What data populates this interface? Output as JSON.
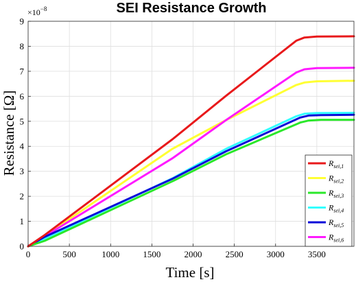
{
  "chart_data": {
    "type": "line",
    "title": "SEI Resistance Growth",
    "xlabel": "Time [s]",
    "ylabel": "Resistance [Ω]",
    "y_exponent_label": "×10",
    "y_exponent": "−8",
    "xlim": [
      0,
      3950
    ],
    "ylim": [
      0,
      9
    ],
    "y_scale_factor": 1e-08,
    "xticks": [
      0,
      500,
      1000,
      1500,
      2000,
      2500,
      3000,
      3500
    ],
    "yticks": [
      0,
      1,
      2,
      3,
      4,
      5,
      6,
      7,
      8,
      9
    ],
    "grid": true,
    "legend_position": "lower-right",
    "series": [
      {
        "name": "R_{sei,1}",
        "label_main": "R",
        "label_sub": "sei,1",
        "color": "#e8191b",
        "x": [
          0,
          200,
          1750,
          2400,
          3250,
          3350,
          3500,
          3950
        ],
        "y": [
          0,
          0.45,
          4.28,
          6.02,
          8.22,
          8.35,
          8.39,
          8.4
        ]
      },
      {
        "name": "R_{sei,2}",
        "label_main": "R",
        "label_sub": "sei,2",
        "color": "#ffff33",
        "x": [
          0,
          200,
          1750,
          2400,
          3250,
          3350,
          3500,
          3950
        ],
        "y": [
          0,
          0.42,
          3.9,
          5.05,
          6.45,
          6.55,
          6.6,
          6.62
        ]
      },
      {
        "name": "R_{sei,3}",
        "label_main": "R",
        "label_sub": "sei,3",
        "color": "#2ae82a",
        "x": [
          0,
          200,
          1750,
          2400,
          3300,
          3400,
          3550,
          3950
        ],
        "y": [
          0,
          0.22,
          2.6,
          3.68,
          4.95,
          5.03,
          5.06,
          5.06
        ]
      },
      {
        "name": "R_{sei,4}",
        "label_main": "R",
        "label_sub": "sei,4",
        "color": "#33ffff",
        "x": [
          0,
          200,
          1750,
          2400,
          3250,
          3350,
          3500,
          3950
        ],
        "y": [
          0,
          0.3,
          2.72,
          3.9,
          5.2,
          5.3,
          5.33,
          5.34
        ]
      },
      {
        "name": "R_{sei,5}",
        "label_main": "R",
        "label_sub": "sei,5",
        "color": "#0a0ad8",
        "x": [
          0,
          200,
          1750,
          2400,
          3300,
          3400,
          3550,
          3950
        ],
        "y": [
          0,
          0.38,
          2.7,
          3.8,
          5.15,
          5.23,
          5.25,
          5.26
        ]
      },
      {
        "name": "R_{sei,6}",
        "label_main": "R",
        "label_sub": "sei,6",
        "color": "#ff1aff",
        "x": [
          0,
          200,
          1750,
          2400,
          3250,
          3350,
          3500,
          3950
        ],
        "y": [
          0,
          0.4,
          3.52,
          5.05,
          6.95,
          7.08,
          7.13,
          7.14
        ]
      }
    ]
  }
}
